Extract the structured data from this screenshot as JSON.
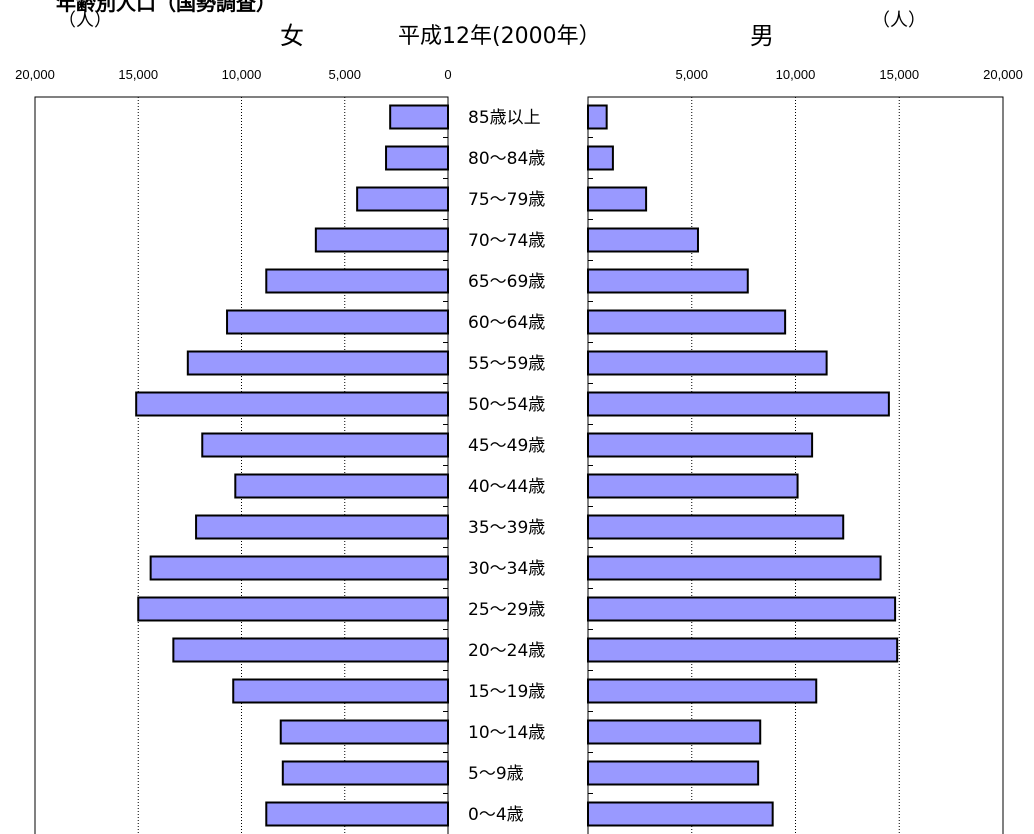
{
  "header": {
    "top_title": "年齢別人口（国勢調査）",
    "unit_left": "（人）",
    "unit_right": "（人）",
    "female_label": "女",
    "male_label": "男",
    "main_title": "平成12年(2000年）"
  },
  "chart_data": {
    "type": "bar",
    "orientation": "horizontal",
    "title": "平成12年(2000年）",
    "unit": "（人）",
    "categories": [
      "85歳以上",
      "80～84歳",
      "75～79歳",
      "70～74歳",
      "65～69歳",
      "60～64歳",
      "55～59歳",
      "50～54歳",
      "45～49歳",
      "40～44歳",
      "35～39歳",
      "30～34歳",
      "25～29歳",
      "20～24歳",
      "15～19歳",
      "10～14歳",
      "5～9歳",
      "0～4歳"
    ],
    "series": [
      {
        "name": "女",
        "values": [
          2800,
          3000,
          4400,
          6400,
          8800,
          10700,
          12600,
          15100,
          11900,
          10300,
          12200,
          14400,
          15000,
          13300,
          10400,
          8100,
          8000,
          8800
        ]
      },
      {
        "name": "男",
        "values": [
          900,
          1200,
          2800,
          5300,
          7700,
          9500,
          11500,
          14500,
          10800,
          10100,
          12300,
          14100,
          14800,
          14900,
          11000,
          8300,
          8200,
          8900
        ]
      }
    ],
    "female_ticks": [
      "20,000",
      "15,000",
      "10,000",
      "5,000",
      "0"
    ],
    "male_ticks": [
      "5,000",
      "10,000",
      "15,000",
      "20,000"
    ],
    "xlim": [
      0,
      20000
    ],
    "bar_color": "#9999ff",
    "grid": true
  }
}
